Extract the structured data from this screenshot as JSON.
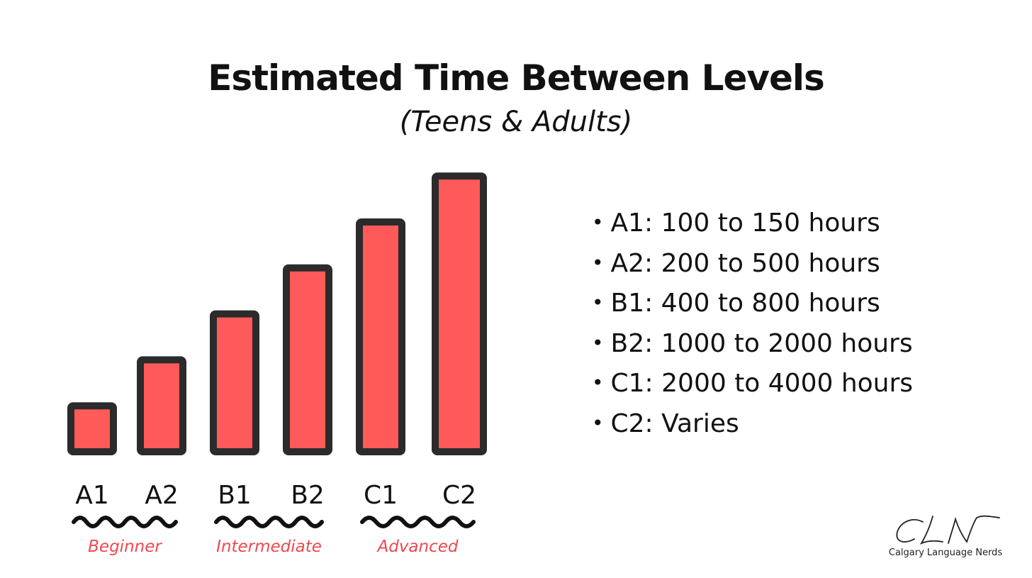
{
  "chart_data": {
    "type": "bar",
    "title": "Estimated Time Between Levels",
    "subtitle": "(Teens & Adults)",
    "categories": [
      "A1",
      "A2",
      "B1",
      "B2",
      "C1",
      "C2"
    ],
    "values": [
      1,
      2,
      3,
      4,
      5,
      6
    ],
    "ylim": [
      0,
      6.25
    ],
    "grid": false,
    "bar_fill": "#ff5a5a",
    "bar_stroke": "#2b2b2b",
    "groups": [
      {
        "label": "Beginner",
        "categories": [
          "A1",
          "A2"
        ]
      },
      {
        "label": "Intermediate",
        "categories": [
          "B1",
          "B2"
        ]
      },
      {
        "label": "Advanced",
        "categories": [
          "C1",
          "C2"
        ]
      }
    ],
    "group_label_color": "#f0474f"
  },
  "legend_items": [
    {
      "bullet": "•",
      "text": "A1: 100 to 150 hours"
    },
    {
      "bullet": "•",
      "text": "A2: 200 to 500 hours"
    },
    {
      "bullet": "•",
      "text": "B1: 400 to 800 hours"
    },
    {
      "bullet": "•",
      "text": "B2: 1000 to 2000 hours"
    },
    {
      "bullet": "•",
      "text": "C1: 2000 to 4000 hours"
    },
    {
      "bullet": "•",
      "text": "C2: Varies"
    }
  ],
  "logo": {
    "monogram": "CLN",
    "caption": "Calgary Language Nerds"
  }
}
